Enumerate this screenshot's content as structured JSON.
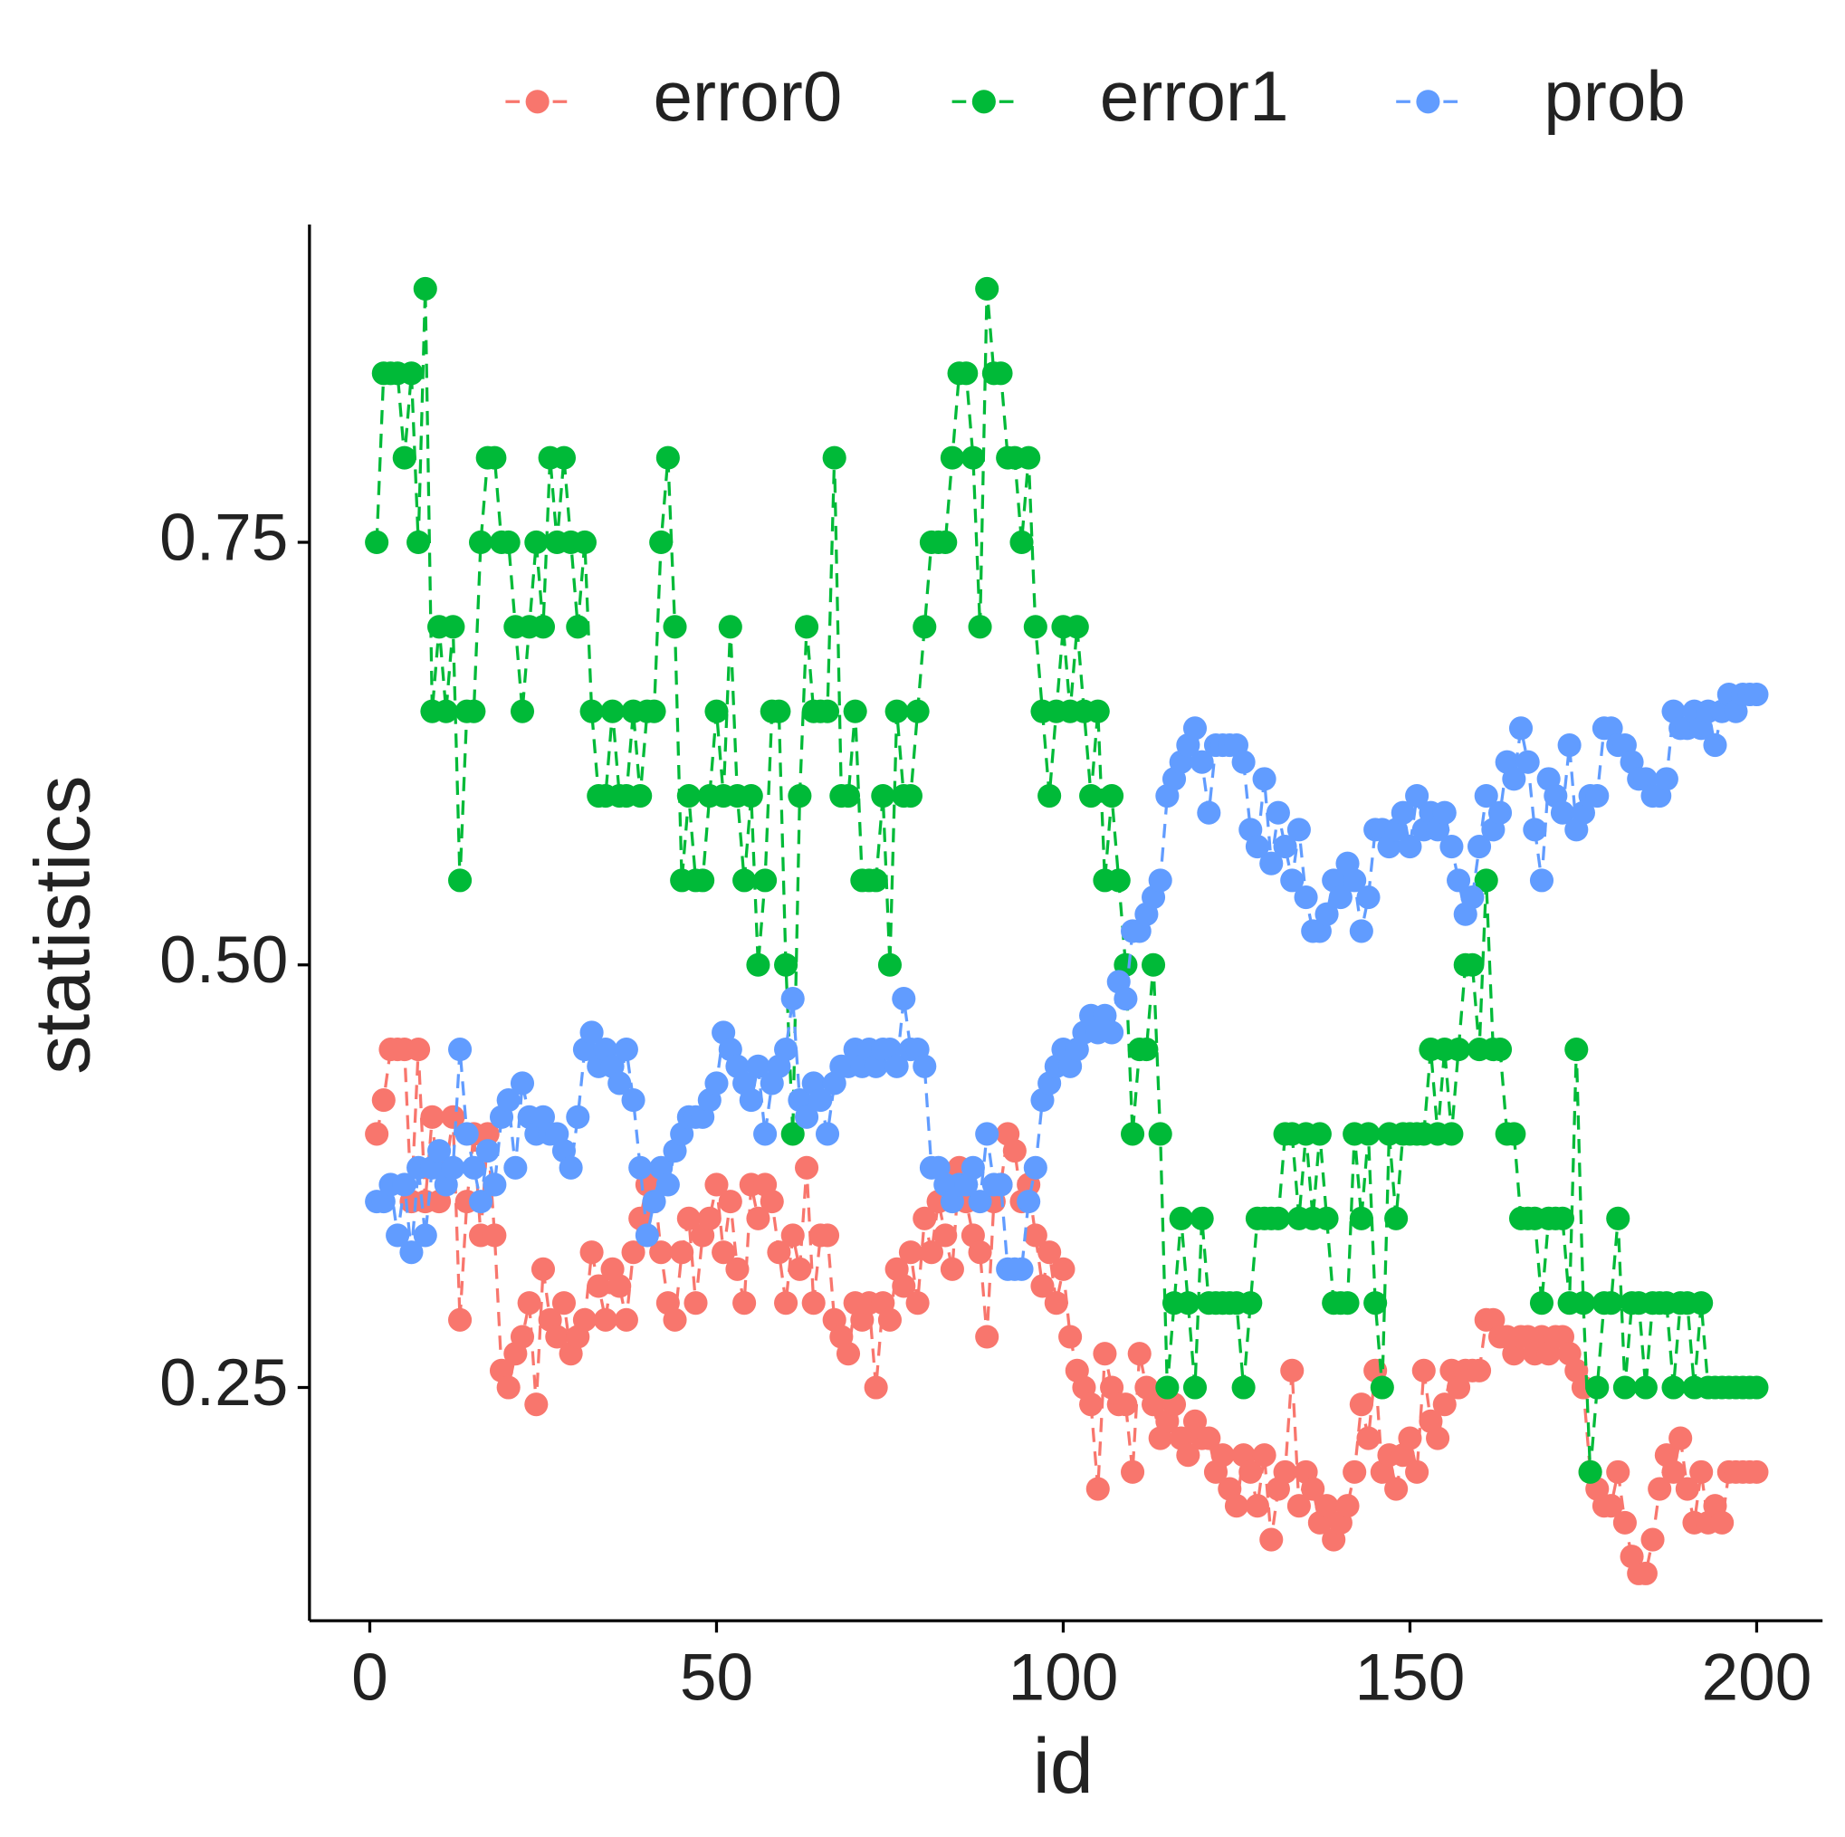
{
  "chart_data": {
    "type": "line",
    "xlabel": "id",
    "ylabel": "statistics",
    "x": [
      1,
      2,
      3,
      4,
      5,
      6,
      7,
      8,
      9,
      10,
      11,
      12,
      13,
      14,
      15,
      16,
      17,
      18,
      19,
      20,
      21,
      22,
      23,
      24,
      25,
      26,
      27,
      28,
      29,
      30,
      31,
      32,
      33,
      34,
      35,
      36,
      37,
      38,
      39,
      40,
      41,
      42,
      43,
      44,
      45,
      46,
      47,
      48,
      49,
      50,
      51,
      52,
      53,
      54,
      55,
      56,
      57,
      58,
      59,
      60,
      61,
      62,
      63,
      64,
      65,
      66,
      67,
      68,
      69,
      70,
      71,
      72,
      73,
      74,
      75,
      76,
      77,
      78,
      79,
      80,
      81,
      82,
      83,
      84,
      85,
      86,
      87,
      88,
      89,
      90,
      91,
      92,
      93,
      94,
      95,
      96,
      97,
      98,
      99,
      100,
      101,
      102,
      103,
      104,
      105,
      106,
      107,
      108,
      109,
      110,
      111,
      112,
      113,
      114,
      115,
      116,
      117,
      118,
      119,
      120,
      121,
      122,
      123,
      124,
      125,
      126,
      127,
      128,
      129,
      130,
      131,
      132,
      133,
      134,
      135,
      136,
      137,
      138,
      139,
      140,
      141,
      142,
      143,
      144,
      145,
      146,
      147,
      148,
      149,
      150,
      151,
      152,
      153,
      154,
      155,
      156,
      157,
      158,
      159,
      160,
      161,
      162,
      163,
      164,
      165,
      166,
      167,
      168,
      169,
      170,
      171,
      172,
      173,
      174,
      175,
      176,
      177,
      178,
      179,
      180,
      181,
      182,
      183,
      184,
      185,
      186,
      187,
      188,
      189,
      190,
      191,
      192,
      193,
      194,
      195,
      196,
      197,
      198,
      199,
      200
    ],
    "series": [
      {
        "name": "error0",
        "color": "#F8766D",
        "values": [
          0.4,
          0.42,
          0.45,
          0.45,
          0.45,
          0.36,
          0.45,
          0.36,
          0.41,
          0.36,
          0.38,
          0.41,
          0.29,
          0.36,
          0.4,
          0.34,
          0.4,
          0.34,
          0.26,
          0.25,
          0.27,
          0.28,
          0.3,
          0.24,
          0.32,
          0.29,
          0.28,
          0.3,
          0.27,
          0.28,
          0.29,
          0.33,
          0.31,
          0.29,
          0.32,
          0.31,
          0.29,
          0.33,
          0.35,
          0.37,
          0.37,
          0.33,
          0.3,
          0.29,
          0.33,
          0.35,
          0.3,
          0.34,
          0.35,
          0.37,
          0.33,
          0.36,
          0.32,
          0.3,
          0.37,
          0.35,
          0.37,
          0.36,
          0.33,
          0.3,
          0.34,
          0.32,
          0.38,
          0.3,
          0.34,
          0.34,
          0.29,
          0.28,
          0.27,
          0.3,
          0.29,
          0.3,
          0.25,
          0.3,
          0.29,
          0.32,
          0.31,
          0.33,
          0.3,
          0.35,
          0.33,
          0.36,
          0.34,
          0.32,
          0.38,
          0.36,
          0.34,
          0.33,
          0.28,
          0.36,
          0.37,
          0.4,
          0.39,
          0.36,
          0.37,
          0.34,
          0.31,
          0.33,
          0.3,
          0.32,
          0.28,
          0.26,
          0.25,
          0.24,
          0.19,
          0.27,
          0.25,
          0.24,
          0.24,
          0.2,
          0.27,
          0.25,
          0.24,
          0.22,
          0.23,
          0.24,
          0.22,
          0.21,
          0.23,
          0.22,
          0.22,
          0.2,
          0.21,
          0.19,
          0.18,
          0.21,
          0.2,
          0.18,
          0.21,
          0.16,
          0.19,
          0.2,
          0.26,
          0.18,
          0.2,
          0.19,
          0.17,
          0.18,
          0.16,
          0.17,
          0.18,
          0.2,
          0.24,
          0.22,
          0.26,
          0.2,
          0.21,
          0.19,
          0.21,
          0.22,
          0.2,
          0.26,
          0.23,
          0.22,
          0.24,
          0.26,
          0.25,
          0.26,
          0.26,
          0.26,
          0.29,
          0.29,
          0.28,
          0.28,
          0.27,
          0.28,
          0.28,
          0.27,
          0.28,
          0.27,
          0.28,
          0.28,
          0.27,
          0.26,
          0.25,
          0.2,
          0.19,
          0.18,
          0.18,
          0.2,
          0.17,
          0.15,
          0.14,
          0.14,
          0.16,
          0.19,
          0.21,
          0.2,
          0.22,
          0.19,
          0.17,
          0.2,
          0.17,
          0.18,
          0.17,
          0.2,
          0.2,
          0.2,
          0.2,
          0.2
        ]
      },
      {
        "name": "error1",
        "color": "#00BA38",
        "values": [
          0.75,
          0.85,
          0.85,
          0.85,
          0.8,
          0.85,
          0.75,
          0.9,
          0.65,
          0.7,
          0.65,
          0.7,
          0.55,
          0.65,
          0.65,
          0.75,
          0.8,
          0.8,
          0.75,
          0.75,
          0.7,
          0.65,
          0.7,
          0.75,
          0.7,
          0.8,
          0.75,
          0.8,
          0.75,
          0.7,
          0.75,
          0.65,
          0.6,
          0.6,
          0.65,
          0.6,
          0.6,
          0.65,
          0.6,
          0.65,
          0.65,
          0.75,
          0.8,
          0.7,
          0.55,
          0.6,
          0.55,
          0.55,
          0.6,
          0.65,
          0.6,
          0.7,
          0.6,
          0.55,
          0.6,
          0.5,
          0.55,
          0.65,
          0.65,
          0.5,
          0.4,
          0.6,
          0.7,
          0.65,
          0.65,
          0.65,
          0.8,
          0.6,
          0.6,
          0.65,
          0.55,
          0.55,
          0.55,
          0.6,
          0.5,
          0.65,
          0.6,
          0.6,
          0.65,
          0.7,
          0.75,
          0.75,
          0.75,
          0.8,
          0.85,
          0.85,
          0.8,
          0.7,
          0.9,
          0.85,
          0.85,
          0.8,
          0.8,
          0.75,
          0.8,
          0.7,
          0.65,
          0.6,
          0.65,
          0.7,
          0.65,
          0.7,
          0.65,
          0.6,
          0.65,
          0.55,
          0.6,
          0.55,
          0.5,
          0.4,
          0.45,
          0.45,
          0.5,
          0.4,
          0.25,
          0.3,
          0.35,
          0.3,
          0.25,
          0.35,
          0.3,
          0.3,
          0.3,
          0.3,
          0.3,
          0.25,
          0.3,
          0.35,
          0.35,
          0.35,
          0.35,
          0.4,
          0.4,
          0.35,
          0.4,
          0.35,
          0.4,
          0.35,
          0.3,
          0.3,
          0.3,
          0.4,
          0.35,
          0.4,
          0.3,
          0.25,
          0.4,
          0.35,
          0.4,
          0.4,
          0.4,
          0.4,
          0.45,
          0.4,
          0.45,
          0.4,
          0.45,
          0.5,
          0.5,
          0.45,
          0.55,
          0.45,
          0.45,
          0.4,
          0.4,
          0.35,
          0.35,
          0.35,
          0.3,
          0.35,
          0.35,
          0.35,
          0.3,
          0.45,
          0.3,
          0.2,
          0.25,
          0.3,
          0.3,
          0.35,
          0.25,
          0.3,
          0.3,
          0.25,
          0.3,
          0.3,
          0.3,
          0.25,
          0.3,
          0.3,
          0.25,
          0.3,
          0.25,
          0.25,
          0.25,
          0.25,
          0.25,
          0.25,
          0.25,
          0.25
        ]
      },
      {
        "name": "prob",
        "color": "#619CFF",
        "values": [
          0.36,
          0.36,
          0.37,
          0.34,
          0.37,
          0.33,
          0.38,
          0.34,
          0.38,
          0.39,
          0.37,
          0.38,
          0.45,
          0.4,
          0.38,
          0.36,
          0.39,
          0.37,
          0.41,
          0.42,
          0.38,
          0.43,
          0.41,
          0.4,
          0.41,
          0.4,
          0.4,
          0.39,
          0.38,
          0.41,
          0.45,
          0.46,
          0.44,
          0.45,
          0.44,
          0.43,
          0.45,
          0.42,
          0.38,
          0.34,
          0.36,
          0.38,
          0.37,
          0.39,
          0.4,
          0.41,
          0.41,
          0.41,
          0.42,
          0.43,
          0.46,
          0.45,
          0.44,
          0.43,
          0.42,
          0.44,
          0.4,
          0.43,
          0.44,
          0.45,
          0.48,
          0.42,
          0.41,
          0.43,
          0.42,
          0.4,
          0.43,
          0.44,
          0.44,
          0.45,
          0.44,
          0.45,
          0.44,
          0.45,
          0.45,
          0.44,
          0.48,
          0.45,
          0.45,
          0.44,
          0.38,
          0.38,
          0.37,
          0.36,
          0.37,
          0.37,
          0.38,
          0.36,
          0.4,
          0.37,
          0.37,
          0.32,
          0.32,
          0.32,
          0.36,
          0.38,
          0.42,
          0.43,
          0.44,
          0.45,
          0.44,
          0.45,
          0.46,
          0.47,
          0.46,
          0.47,
          0.46,
          0.49,
          0.48,
          0.52,
          0.52,
          0.53,
          0.54,
          0.55,
          0.6,
          0.61,
          0.62,
          0.63,
          0.64,
          0.62,
          0.59,
          0.63,
          0.63,
          0.63,
          0.63,
          0.62,
          0.58,
          0.57,
          0.61,
          0.56,
          0.59,
          0.57,
          0.55,
          0.58,
          0.54,
          0.52,
          0.52,
          0.53,
          0.55,
          0.54,
          0.56,
          0.55,
          0.52,
          0.54,
          0.58,
          0.58,
          0.57,
          0.58,
          0.59,
          0.57,
          0.6,
          0.58,
          0.59,
          0.58,
          0.59,
          0.57,
          0.55,
          0.53,
          0.54,
          0.57,
          0.6,
          0.58,
          0.59,
          0.62,
          0.61,
          0.64,
          0.62,
          0.58,
          0.55,
          0.61,
          0.6,
          0.59,
          0.63,
          0.58,
          0.59,
          0.6,
          0.6,
          0.64,
          0.64,
          0.63,
          0.63,
          0.62,
          0.61,
          0.61,
          0.6,
          0.6,
          0.61,
          0.65,
          0.64,
          0.64,
          0.65,
          0.64,
          0.65,
          0.63,
          0.65,
          0.66,
          0.65,
          0.66,
          0.66,
          0.66
        ]
      }
    ],
    "xlim": [
      -8.7,
      209.5
    ],
    "xticks": [
      0,
      50,
      100,
      150,
      200
    ],
    "ylim": [
      0.112,
      0.938
    ],
    "yticks": [
      0.25,
      {
        "value": 0.5,
        "label": "0.50"
      },
      0.75
    ],
    "line_style": "dashed",
    "legend": "top",
    "grid": false
  }
}
